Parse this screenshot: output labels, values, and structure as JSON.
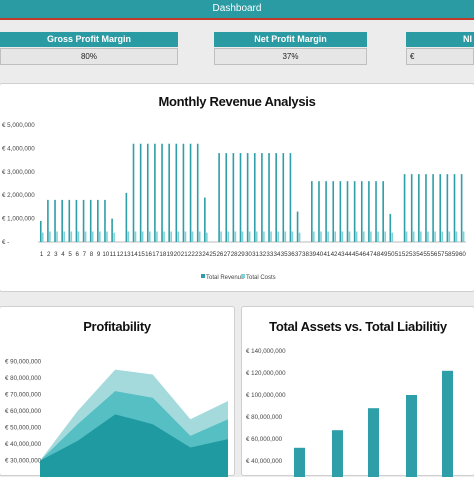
{
  "header": {
    "title": "Dashboard"
  },
  "kpis": [
    {
      "label": "Gross Profit Margin",
      "value": "80%"
    },
    {
      "label": "Net Profit Margin",
      "value": "37%"
    },
    {
      "label": "NI",
      "value": "€"
    }
  ],
  "colors": {
    "accent": "#2a9aa3",
    "revenue": "#2e9ea8",
    "costs": "#7dd3d8",
    "area_light": "#a5dadd",
    "area_mid": "#55bfc4",
    "area_dark": "#1f9aa0",
    "alert": "#c0392b"
  },
  "chart_data": [
    {
      "type": "bar",
      "title": "Monthly Revenue Analysis",
      "categories": [
        "1",
        "2",
        "3",
        "4",
        "5",
        "6",
        "7",
        "8",
        "9",
        "10",
        "11",
        "12",
        "13",
        "14",
        "15",
        "16",
        "17",
        "18",
        "19",
        "20",
        "21",
        "22",
        "23",
        "24",
        "25",
        "26",
        "27",
        "28",
        "29",
        "30",
        "31",
        "32",
        "33",
        "34",
        "35",
        "36",
        "37",
        "38",
        "39",
        "40",
        "41",
        "42",
        "43",
        "44",
        "45",
        "46",
        "47",
        "48",
        "49",
        "50",
        "51",
        "52",
        "53",
        "54",
        "55",
        "56",
        "57",
        "58",
        "59",
        "60"
      ],
      "series": [
        {
          "name": "Total Revenue",
          "values": [
            900000,
            1800000,
            1800000,
            1800000,
            1800000,
            1800000,
            1800000,
            1800000,
            1800000,
            1800000,
            1000000,
            0,
            2100000,
            4200000,
            4200000,
            4200000,
            4200000,
            4200000,
            4200000,
            4200000,
            4200000,
            4200000,
            4200000,
            1900000,
            0,
            3800000,
            3800000,
            3800000,
            3800000,
            3800000,
            3800000,
            3800000,
            3800000,
            3800000,
            3800000,
            3800000,
            1300000,
            0,
            2600000,
            2600000,
            2600000,
            2600000,
            2600000,
            2600000,
            2600000,
            2600000,
            2600000,
            2600000,
            2600000,
            1200000,
            0,
            2900000,
            2900000,
            2900000,
            2900000,
            2900000,
            2900000,
            2900000,
            2900000,
            2900000
          ]
        },
        {
          "name": "Total Costs",
          "values": [
            400000,
            450000,
            450000,
            450000,
            450000,
            450000,
            450000,
            450000,
            450000,
            450000,
            400000,
            0,
            450000,
            450000,
            450000,
            450000,
            450000,
            450000,
            450000,
            450000,
            450000,
            450000,
            450000,
            400000,
            0,
            450000,
            450000,
            450000,
            450000,
            450000,
            450000,
            450000,
            450000,
            450000,
            450000,
            450000,
            400000,
            0,
            450000,
            450000,
            450000,
            450000,
            450000,
            450000,
            450000,
            450000,
            450000,
            450000,
            450000,
            400000,
            0,
            450000,
            450000,
            450000,
            450000,
            450000,
            450000,
            450000,
            450000,
            450000
          ]
        }
      ],
      "yticks": [
        "€ 5,000,000",
        "€ 4,000,000",
        "€ 3,000,000",
        "€ 2,000,000",
        "€ 1,000,000",
        "€ -"
      ],
      "ylim": [
        0,
        5000000
      ],
      "legend": [
        "Total Revenue",
        "Total Costs"
      ],
      "legend_position": "bottom"
    },
    {
      "type": "area",
      "title": "Profitability",
      "yticks": [
        "€ 90,000,000",
        "€ 80,000,000",
        "€ 70,000,000",
        "€ 60,000,000",
        "€ 50,000,000",
        "€ 40,000,000",
        "€ 30,000,000"
      ],
      "ylim": [
        25000000,
        95000000
      ],
      "series": [
        {
          "values": [
            30000000,
            60000000,
            85000000,
            82000000,
            55000000,
            66000000
          ]
        },
        {
          "values": [
            30000000,
            52000000,
            72000000,
            68000000,
            45000000,
            55000000
          ]
        },
        {
          "values": [
            30000000,
            42000000,
            58000000,
            52000000,
            38000000,
            43000000
          ]
        }
      ]
    },
    {
      "type": "bar",
      "title": "Total Assets vs. Total Liabilitiy",
      "yticks": [
        "€ 140,000,000",
        "€ 120,000,000",
        "€ 100,000,000",
        "€ 80,000,000",
        "€ 60,000,000",
        "€ 40,000,000"
      ],
      "ylim": [
        40000000,
        140000000
      ],
      "values": [
        52000000,
        68000000,
        88000000,
        100000000,
        122000000
      ]
    }
  ]
}
